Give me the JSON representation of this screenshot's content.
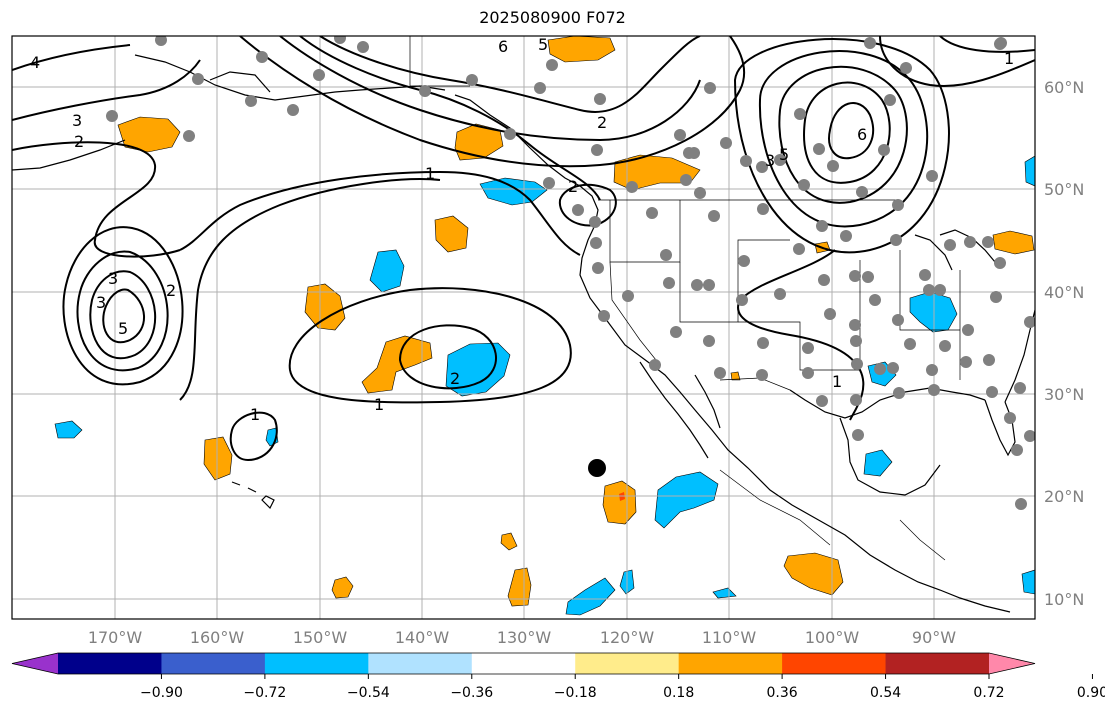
{
  "title": "2025080900 F072",
  "map": {
    "lat_labels": [
      "60°N",
      "50°N",
      "40°N",
      "30°N",
      "20°N",
      "10°N"
    ],
    "lon_labels": [
      "170°W",
      "160°W",
      "150°W",
      "140°W",
      "130°W",
      "120°W",
      "110°W",
      "100°W",
      "90°W"
    ],
    "contour_labels": [
      "4",
      "3",
      "2",
      "1",
      "6",
      "5",
      "3",
      "5",
      "2",
      "3",
      "2",
      "2",
      "1",
      "2",
      "1",
      "1",
      "6",
      "5",
      "3",
      "1"
    ],
    "colors": {
      "contour": "#000000",
      "gridline": "#b0b0b0",
      "station": "#808080",
      "marker": "#000000"
    }
  },
  "colorbar": {
    "ticks": [
      "−0.90",
      "−0.72",
      "−0.54",
      "−0.36",
      "−0.18",
      "0.18",
      "0.36",
      "0.54",
      "0.72",
      "0.90"
    ],
    "colors": [
      "#9932cc",
      "#00008b",
      "#3a5fcd",
      "#00bfff",
      "#b0e2ff",
      "#ffffff",
      "#ffec8b",
      "#ffa500",
      "#ff4500",
      "#b22222",
      "#ff88aa"
    ]
  }
}
